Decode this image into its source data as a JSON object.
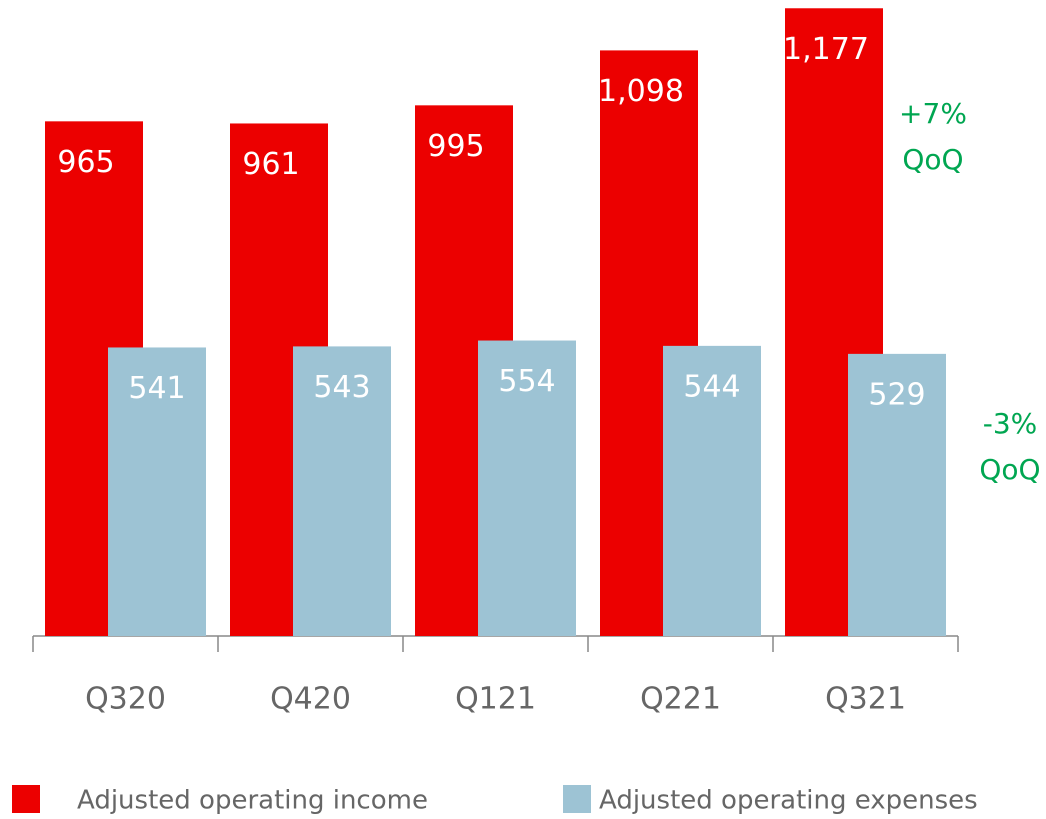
{
  "chart_data": {
    "type": "bar",
    "categories": [
      "Q320",
      "Q420",
      "Q121",
      "Q221",
      "Q321"
    ],
    "series": [
      {
        "name": "Adjusted operating income",
        "color": "#ec0000",
        "values": [
          965,
          961,
          995,
          1098,
          1177
        ],
        "value_labels": [
          "965",
          "961",
          "995",
          "1,098",
          "1,177"
        ]
      },
      {
        "name": "Adjusted operating expenses",
        "color": "#9dc3d4",
        "values": [
          541,
          543,
          554,
          544,
          529
        ]
      }
    ],
    "ylim": [
      0,
      1200
    ],
    "annotations": [
      {
        "lines": [
          "+7%",
          "QoQ"
        ],
        "color": "#00a651"
      },
      {
        "lines": [
          "-3%",
          "QoQ"
        ],
        "color": "#00a651"
      }
    ]
  }
}
